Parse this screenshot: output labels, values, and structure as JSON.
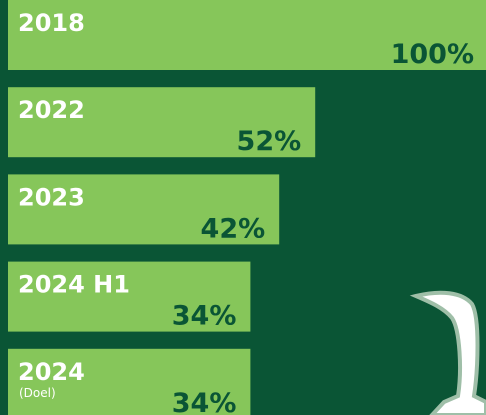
{
  "chart_data": {
    "type": "hbar",
    "categories": [
      "2018",
      "2022",
      "2023",
      "2024 H1",
      "2024"
    ],
    "values": [
      100,
      52,
      42,
      34,
      34
    ],
    "value_labels": [
      "100%",
      "52%",
      "42%",
      "34%",
      "34%"
    ],
    "annotation": "(Doel)",
    "color": "#86c65a"
  }
}
